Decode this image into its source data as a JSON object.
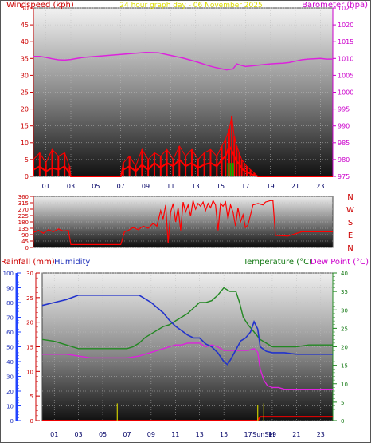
{
  "chart_data": [
    {
      "type": "line",
      "name": "wind-barometer",
      "title": "24 hour graph day - 06 November 2025",
      "left_axis_label": "Windspeed (kph)",
      "right_axis_label": "Barometer (hpa)",
      "left_ticks": [
        "0",
        "5",
        "10",
        "15",
        "20",
        "25",
        "30",
        "35",
        "40",
        "45",
        "50"
      ],
      "right_ticks": [
        "975",
        "980",
        "985",
        "990",
        "995",
        "1000",
        "1005",
        "1010",
        "1015",
        "1020",
        "1025"
      ],
      "x_ticks": [
        "01",
        "03",
        "05",
        "07",
        "09",
        "11",
        "13",
        "15",
        "17",
        "19",
        "21",
        "23"
      ],
      "ylim_left": [
        0,
        50
      ],
      "ylim_right": [
        975,
        1025
      ],
      "xlim": [
        0,
        24
      ],
      "colors": {
        "wind": "#ff0000",
        "gust": "#ff0000",
        "barometer": "#dd22dd",
        "calm": "#00aa00",
        "left_text": "#cc0000",
        "title_text": "#dddd00",
        "right_text": "#cc00cc"
      },
      "series": [
        {
          "key": "barometer",
          "x": [
            0,
            0.5,
            1,
            1.5,
            2,
            2.5,
            3,
            3.5,
            4,
            5,
            6,
            7,
            8,
            9,
            10,
            10.5,
            11,
            11.5,
            12,
            12.5,
            13,
            13.5,
            14,
            14.5,
            15,
            15.5,
            16,
            16.3,
            16.6,
            17,
            17.5,
            18,
            18.5,
            19,
            19.5,
            20,
            20.5,
            21,
            21.5,
            22,
            22.5,
            23,
            23.5,
            24
          ],
          "y": [
            1010.6,
            1010.6,
            1010.3,
            1009.9,
            1009.6,
            1009.5,
            1009.7,
            1010.0,
            1010.3,
            1010.6,
            1010.9,
            1011.2,
            1011.5,
            1011.8,
            1011.7,
            1011.3,
            1010.9,
            1010.5,
            1010.1,
            1009.6,
            1009.1,
            1008.5,
            1007.9,
            1007.4,
            1007.0,
            1006.6,
            1006.9,
            1008.4,
            1008.0,
            1007.6,
            1007.8,
            1008.0,
            1008.2,
            1008.4,
            1008.5,
            1008.6,
            1008.8,
            1009.2,
            1009.6,
            1009.8,
            1009.9,
            1010.0,
            1009.8,
            1009.8
          ]
        },
        {
          "key": "wind",
          "x": [
            0,
            0.5,
            1,
            1.5,
            2,
            2.5,
            2.9,
            3.0,
            7.0,
            7.2,
            7.7,
            8.2,
            8.7,
            9.2,
            9.7,
            10.2,
            10.7,
            11.2,
            11.7,
            12.2,
            12.7,
            13.2,
            13.7,
            14.2,
            14.7,
            15.1,
            15.4,
            15.7,
            16.0,
            16.2,
            16.4,
            16.6,
            16.8,
            17.0,
            17.3,
            17.6,
            18.0,
            18.2,
            24
          ],
          "y": [
            2,
            3,
            1.5,
            2.5,
            2,
            3,
            1,
            0,
            0,
            2,
            3,
            1.5,
            3.5,
            2,
            4,
            2.5,
            4,
            3,
            5,
            3,
            4,
            2.5,
            3.5,
            4,
            3,
            5,
            6,
            9,
            7,
            5,
            4,
            3,
            2,
            1.5,
            1,
            0.5,
            0,
            0,
            0
          ]
        },
        {
          "key": "gust",
          "x": [
            0,
            0.5,
            1,
            1.5,
            2,
            2.5,
            2.9,
            3.0,
            7.0,
            7.2,
            7.7,
            8.2,
            8.7,
            9.2,
            9.7,
            10.2,
            10.7,
            11.2,
            11.7,
            12.2,
            12.7,
            13.2,
            13.7,
            14.2,
            14.7,
            15.1,
            15.4,
            15.7,
            15.9,
            16.1,
            16.3,
            16.5,
            16.7,
            16.9,
            17.1,
            17.4,
            17.7,
            18.0,
            18.2,
            24
          ],
          "y": [
            5,
            7,
            4,
            8,
            6,
            7,
            3,
            0,
            0,
            4,
            6,
            3,
            8,
            5,
            7,
            6,
            8,
            5,
            9,
            6,
            8,
            5,
            7,
            8,
            6,
            9,
            11,
            14,
            18,
            12,
            9,
            7,
            5,
            4,
            3,
            2,
            1,
            0,
            0,
            0
          ]
        }
      ]
    },
    {
      "type": "line",
      "name": "wind-direction",
      "left_ticks": [
        "0",
        "45",
        "90",
        "135",
        "180",
        "225",
        "270",
        "315",
        "360"
      ],
      "right_labels": [
        "N",
        "W",
        "S",
        "E",
        "N"
      ],
      "ylim": [
        0,
        360
      ],
      "xlim": [
        0,
        24
      ],
      "colors": {
        "direction": "#ff0000",
        "labels": "#cc0000"
      },
      "series": [
        {
          "key": "direction",
          "x": [
            0,
            0.4,
            0.8,
            1.2,
            1.6,
            2.0,
            2.4,
            2.8,
            3.0,
            7.0,
            7.3,
            7.6,
            8.0,
            8.4,
            8.8,
            9.2,
            9.6,
            9.9,
            10.2,
            10.4,
            10.6,
            10.8,
            11.0,
            11.2,
            11.4,
            11.6,
            11.8,
            12.0,
            12.2,
            12.4,
            12.6,
            12.8,
            13.0,
            13.2,
            13.4,
            13.6,
            13.8,
            14.0,
            14.2,
            14.4,
            14.6,
            14.8,
            15.0,
            15.2,
            15.4,
            15.6,
            15.8,
            16.0,
            16.2,
            16.4,
            16.6,
            16.8,
            17.0,
            17.2,
            17.6,
            18.0,
            18.4,
            18.6,
            19.0,
            19.2,
            19.4,
            20.4,
            21.5,
            22.5,
            24
          ],
          "y": [
            105,
            120,
            100,
            125,
            110,
            130,
            115,
            120,
            20,
            20,
            110,
            120,
            140,
            125,
            150,
            135,
            170,
            150,
            260,
            200,
            300,
            30,
            250,
            310,
            180,
            280,
            120,
            320,
            250,
            300,
            220,
            330,
            270,
            310,
            290,
            320,
            260,
            310,
            280,
            330,
            300,
            120,
            310,
            290,
            320,
            200,
            300,
            250,
            150,
            280,
            180,
            230,
            140,
            160,
            300,
            310,
            300,
            320,
            330,
            330,
            85,
            80,
            110,
            110,
            110
          ]
        }
      ]
    },
    {
      "type": "line",
      "name": "rain-humidity-temp",
      "legend": [
        "Rainfall (mm)",
        "Humidity",
        "Temperature (°C)",
        "Dew Point (°C)"
      ],
      "rain_ticks": [
        "0",
        "5",
        "10",
        "15",
        "20",
        "25",
        "30"
      ],
      "humidity_ticks": [
        "0",
        "10",
        "20",
        "30",
        "40",
        "50",
        "60",
        "70",
        "80",
        "90",
        "100"
      ],
      "temp_ticks": [
        "0",
        "5",
        "10",
        "15",
        "20",
        "25",
        "30",
        "35",
        "40"
      ],
      "x_ticks": [
        "01",
        "03",
        "05",
        "07",
        "09",
        "11",
        "13",
        "15",
        "17",
        "19",
        "21",
        "23"
      ],
      "sun_label": "SunSet",
      "ylim_rain": [
        0,
        30
      ],
      "ylim_humidity": [
        0,
        100
      ],
      "ylim_temp": [
        0,
        40
      ],
      "xlim": [
        0,
        24
      ],
      "colors": {
        "rain": "#ff0000",
        "rain_total": "#ee0000",
        "humidity": "#2233cc",
        "temperature": "#228822",
        "dewpoint": "#dd22dd",
        "sun": "#cccc00",
        "rain_text": "#cc0000",
        "humidity_text": "#2233bb",
        "temp_text": "#117711",
        "dew_text": "#cc00cc",
        "blue_axis": "#2244ff",
        "red_axis": "#cc0000",
        "green_axis": "#228822"
      },
      "series": [
        {
          "key": "humidity",
          "x": [
            0,
            1,
            2,
            3,
            4,
            5,
            6,
            7,
            8,
            9,
            10,
            10.5,
            11,
            11.5,
            12,
            12.5,
            13,
            13.5,
            14,
            14.5,
            15,
            15.3,
            15.6,
            16,
            16.4,
            16.8,
            17.2,
            17.5,
            17.8,
            18.0,
            18.5,
            19,
            20,
            21,
            22,
            23,
            24
          ],
          "y": [
            78,
            80,
            82,
            85,
            85,
            85,
            85,
            85,
            85,
            80,
            73,
            68,
            64,
            61,
            58,
            56,
            56,
            52,
            50,
            46,
            40,
            38,
            42,
            48,
            54,
            56,
            60,
            67,
            62,
            50,
            47,
            46,
            46,
            45,
            45,
            45,
            45
          ]
        },
        {
          "key": "temperature",
          "x": [
            0,
            1,
            2,
            3,
            4,
            5,
            6,
            7,
            7.5,
            8,
            8.5,
            9,
            9.5,
            10,
            10.5,
            11,
            11.5,
            12,
            12.5,
            13,
            13.5,
            14,
            14.5,
            15,
            15.5,
            16,
            16.3,
            16.6,
            17,
            17.5,
            18,
            18.5,
            19,
            20,
            21,
            22,
            23,
            24
          ],
          "y": [
            22,
            21.5,
            20.5,
            19.5,
            19.5,
            19.5,
            19.5,
            19.5,
            20,
            21,
            22.5,
            23.5,
            24.5,
            25.5,
            26,
            27,
            28,
            29,
            30.5,
            32,
            32,
            32.5,
            34,
            36,
            35,
            35,
            32,
            28,
            26,
            24,
            22,
            21,
            20,
            20,
            20,
            20.5,
            20.5,
            20.5
          ]
        },
        {
          "key": "dewpoint",
          "x": [
            0,
            1,
            2,
            3,
            4,
            5,
            6,
            7,
            8,
            9,
            10,
            10.5,
            11,
            11.5,
            12,
            12.5,
            13,
            13.5,
            14,
            14.5,
            15,
            15.5,
            16,
            16.5,
            17,
            17.5,
            17.8,
            18.0,
            18.3,
            18.6,
            19,
            19.5,
            20,
            21,
            22,
            23,
            24
          ],
          "y": [
            18,
            18,
            18,
            17.5,
            17,
            17,
            17,
            17,
            17.5,
            18.5,
            19.5,
            20,
            20.5,
            20.5,
            21,
            21,
            21,
            20,
            20.5,
            20,
            19,
            19,
            19,
            19,
            19,
            19.5,
            18.5,
            14,
            11,
            9.5,
            9,
            9,
            8.5,
            8.5,
            8.5,
            8.5,
            8.5
          ]
        },
        {
          "key": "rain_total",
          "x": [
            0,
            17.8,
            18.0,
            24
          ],
          "y": [
            0,
            0,
            0.8,
            0.8
          ]
        },
        {
          "key": "rain_rate",
          "x": [
            6.2,
            17.8
          ],
          "y": [
            3.5,
            3.2
          ]
        },
        {
          "key": "sun",
          "x": [
            18.3
          ],
          "y": [
            3.5
          ]
        }
      ]
    }
  ]
}
